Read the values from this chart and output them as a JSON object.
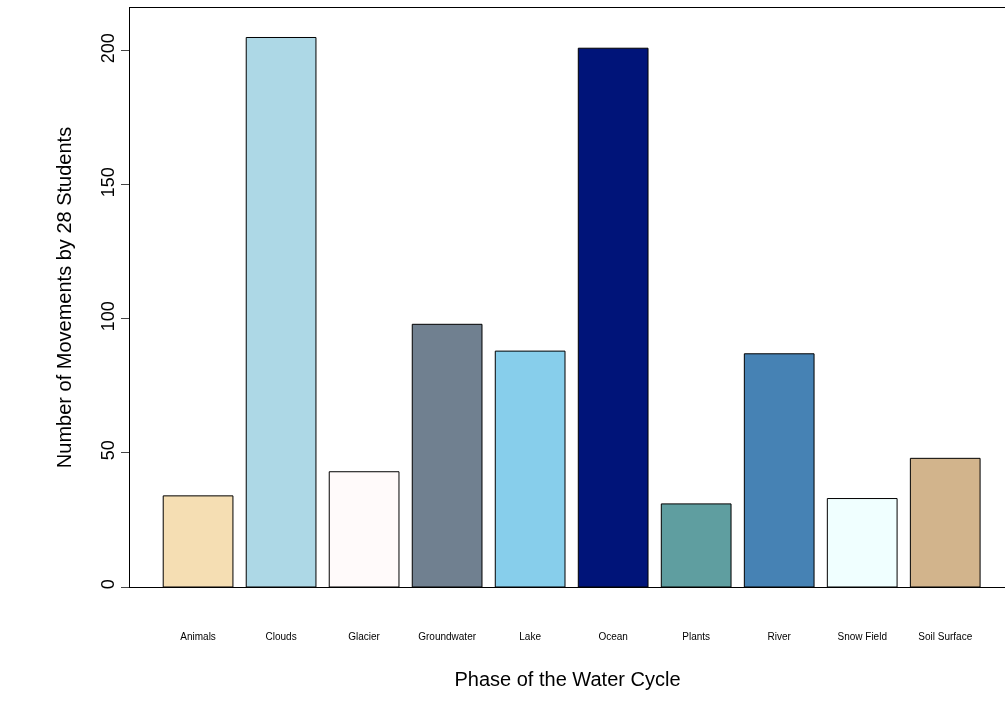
{
  "chart_data": {
    "type": "bar",
    "xlabel": "Phase of the Water Cycle",
    "ylabel": "Number of Movements by 28 Students",
    "categories": [
      "Animals",
      "Clouds",
      "Glacier",
      "Groundwater",
      "Lake",
      "Ocean",
      "Plants",
      "River",
      "Snow Field",
      "Soil Surface"
    ],
    "values": [
      34,
      205,
      43,
      98,
      88,
      201,
      31,
      87,
      33,
      48
    ],
    "colors": [
      "#f5deb3",
      "#add8e6",
      "#fffafa",
      "#708090",
      "#87ceeb",
      "#001479",
      "#5f9ea0",
      "#4682b4",
      "#f0ffff",
      "#d2b48c"
    ],
    "ylim": [
      0,
      216
    ],
    "yticks": [
      0,
      50,
      100,
      150,
      200
    ],
    "grid": false
  }
}
